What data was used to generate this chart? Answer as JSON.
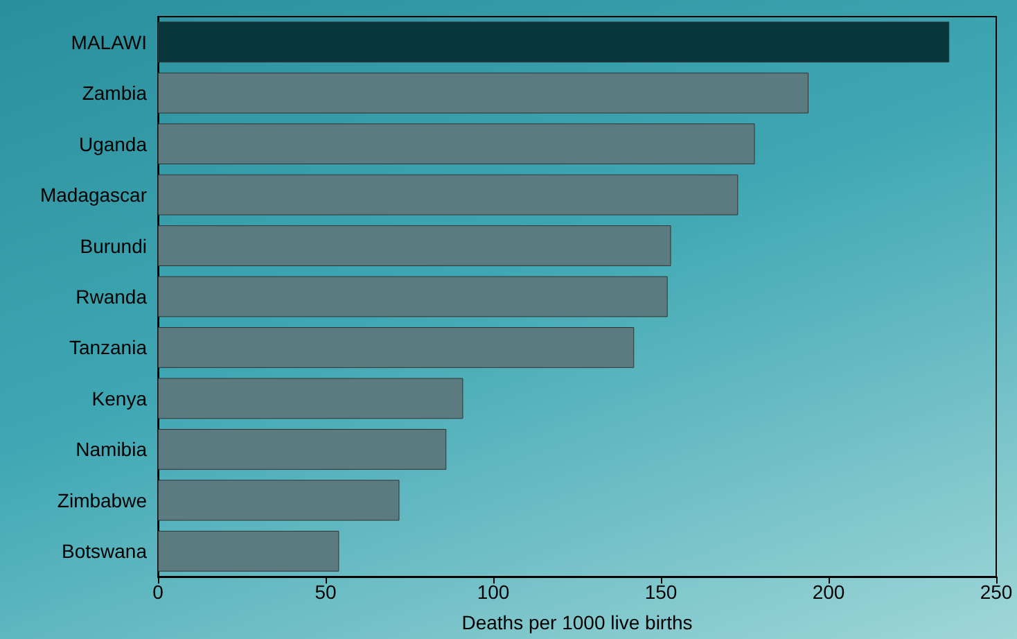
{
  "chart_data": {
    "type": "bar",
    "orientation": "horizontal",
    "xlabel": "Deaths per 1000 live births",
    "categories": [
      "MALAWI",
      "Zambia",
      "Uganda",
      "Madagascar",
      "Burundi",
      "Rwanda",
      "Tanzania",
      "Kenya",
      "Namibia",
      "Zimbabwe",
      "Botswana"
    ],
    "values": [
      236,
      194,
      178,
      173,
      153,
      152,
      142,
      91,
      86,
      72,
      54
    ],
    "colors": [
      "#07363d",
      "#5c7b80",
      "#5c7b80",
      "#5c7b80",
      "#5c7b80",
      "#5c7b80",
      "#5c7b80",
      "#5c7b80",
      "#5c7b80",
      "#5c7b80",
      "#5c7b80"
    ],
    "xlim": [
      0,
      250
    ],
    "xticks": [
      0,
      50,
      100,
      150,
      200,
      250
    ],
    "grid": false
  }
}
